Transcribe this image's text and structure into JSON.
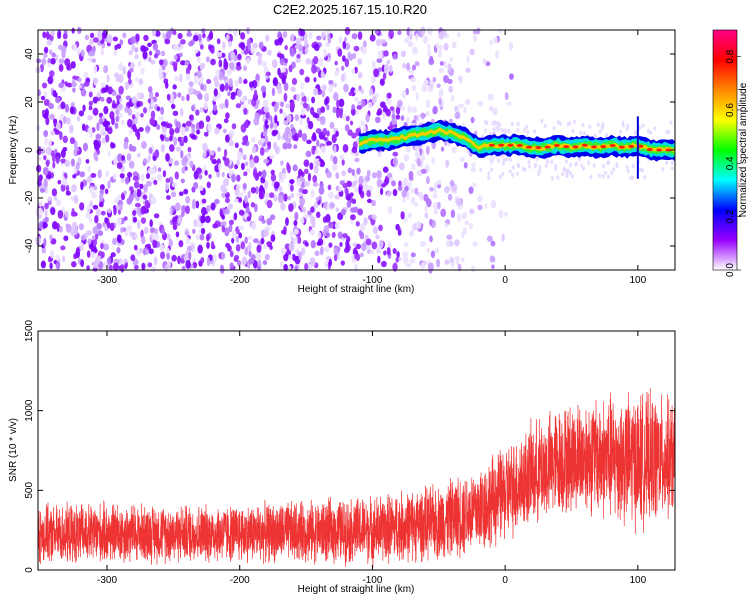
{
  "title": "C2E2.2025.167.15.10.R20",
  "chart_data": [
    {
      "type": "heatmap",
      "xlabel": "Height of straight line (km)",
      "ylabel": "Frequency (Hz)",
      "xlim": [
        -352,
        128
      ],
      "ylim": [
        -50,
        50
      ],
      "xticks": [
        -300,
        -200,
        -100,
        0,
        100
      ],
      "yticks": [
        -40,
        -20,
        0,
        20,
        40
      ],
      "colorbar": {
        "label": "Normalized spectral amplitude",
        "range": [
          0.0,
          0.9
        ],
        "ticks": [
          "0.0",
          "0.2",
          "0.4",
          "0.6",
          "0.8"
        ],
        "colors": [
          "#ffffff",
          "#9900ff",
          "#0000ff",
          "#00ffff",
          "#00ff00",
          "#ffff00",
          "#ff8800",
          "#ff0000",
          "#ff0088"
        ]
      },
      "noise_region_km": [
        -352,
        -25
      ],
      "signal_trace": {
        "x": [
          -110,
          -100,
          -90,
          -80,
          -70,
          -60,
          -50,
          -40,
          -30,
          -20,
          -10,
          0,
          10,
          20,
          30,
          40,
          50,
          60,
          70,
          80,
          90,
          100,
          110,
          128
        ],
        "y": [
          3,
          4,
          4,
          5,
          6,
          7,
          8,
          7,
          5,
          1,
          2,
          2,
          2,
          1,
          1,
          2,
          1,
          2,
          1,
          2,
          1,
          2,
          0,
          0
        ]
      }
    },
    {
      "type": "line",
      "xlabel": "Height of straight line (km)",
      "ylabel": "SNR (10 * v/v)",
      "xlim": [
        -352,
        128
      ],
      "ylim": [
        0,
        1500
      ],
      "xticks": [
        -300,
        -200,
        -100,
        0,
        100
      ],
      "yticks": [
        0,
        500,
        1000,
        1500
      ],
      "color": "#ee3333",
      "envelope": {
        "x": [
          -352,
          -300,
          -250,
          -200,
          -150,
          -100,
          -50,
          -20,
          0,
          20,
          40,
          60,
          80,
          100,
          128
        ],
        "mean": [
          220,
          230,
          230,
          230,
          240,
          250,
          300,
          380,
          480,
          600,
          680,
          720,
          700,
          690,
          700
        ],
        "amplitude": [
          170,
          180,
          170,
          170,
          180,
          200,
          220,
          260,
          280,
          300,
          320,
          330,
          380,
          400,
          350
        ]
      }
    }
  ]
}
